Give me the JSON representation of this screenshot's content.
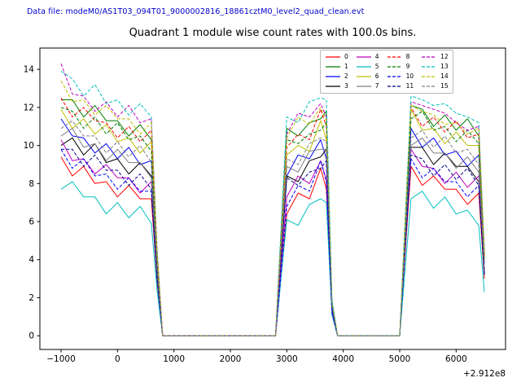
{
  "header": {
    "data_file_label": "Data file: modeM0/AS1T03_094T01_9000002816_18861cztM0_level2_quad_clean.evt",
    "color": "#0000cd"
  },
  "chart_data": {
    "type": "line",
    "title": "Quadrant 1 module wise count rates with 100.0s bins.",
    "xlabel": "",
    "ylabel": "",
    "x_offset_label": "+2.912e8",
    "grid": false,
    "legend_position": "upper right",
    "axis_color": "#000000",
    "xlim": [
      -1375,
      6875
    ],
    "ylim": [
      -0.72,
      15.12
    ],
    "x_ticks": [
      -1000,
      0,
      1000,
      2000,
      3000,
      4000,
      5000,
      6000
    ],
    "x_tick_labels": [
      "−1000",
      "0",
      "1000",
      "2000",
      "3000",
      "4000",
      "5000",
      "6000"
    ],
    "y_ticks": [
      0,
      2,
      4,
      6,
      8,
      10,
      12,
      14
    ],
    "y_tick_labels": [
      "0",
      "2",
      "4",
      "6",
      "8",
      "10",
      "12",
      "14"
    ],
    "x": [
      -1000,
      -800,
      -600,
      -400,
      -200,
      0,
      200,
      400,
      600,
      700,
      800,
      1000,
      1500,
      2000,
      2500,
      2800,
      2900,
      3000,
      3200,
      3400,
      3600,
      3700,
      3800,
      3900,
      4500,
      5000,
      5100,
      5200,
      5400,
      5600,
      5800,
      6000,
      6200,
      6400,
      6500
    ],
    "series": [
      {
        "name": "0",
        "color": "#ff0000",
        "dash": "solid",
        "values": [
          9.4,
          8.4,
          8.9,
          8.0,
          8.1,
          7.3,
          7.9,
          7.2,
          7.2,
          2.9,
          0,
          0,
          0,
          0,
          0,
          0,
          3.2,
          6.4,
          7.5,
          7.2,
          8.8,
          7.7,
          1.2,
          0,
          0,
          0,
          4.5,
          8.9,
          7.9,
          8.4,
          7.7,
          7.7,
          6.9,
          7.5,
          3.0
        ]
      },
      {
        "name": "1",
        "color": "#007f00",
        "dash": "solid",
        "values": [
          12.4,
          12.4,
          11.5,
          12.1,
          11.3,
          11.3,
          10.5,
          11.1,
          10.3,
          4.1,
          0,
          0,
          0,
          0,
          0,
          0,
          5.5,
          10.9,
          10.5,
          11.2,
          11.4,
          11.8,
          1.8,
          0,
          0,
          0,
          6.1,
          12.1,
          11.9,
          11.0,
          11.6,
          10.8,
          11.4,
          10.5,
          4.2
        ]
      },
      {
        "name": "2",
        "color": "#0000ff",
        "dash": "solid",
        "values": [
          11.4,
          10.5,
          10.4,
          9.6,
          10.1,
          9.3,
          9.9,
          9.0,
          9.2,
          3.7,
          0,
          0,
          0,
          0,
          0,
          0,
          4.2,
          8.4,
          9.5,
          9.3,
          10.3,
          9.3,
          1.4,
          0,
          0,
          0,
          5.5,
          10.9,
          9.9,
          10.4,
          9.5,
          9.7,
          8.9,
          9.5,
          3.8
        ]
      },
      {
        "name": "3",
        "color": "#000000",
        "dash": "solid",
        "values": [
          10.0,
          10.4,
          9.5,
          10.1,
          9.1,
          9.3,
          8.5,
          9.1,
          8.4,
          3.4,
          0,
          0,
          0,
          0,
          0,
          0,
          4.2,
          8.4,
          8.1,
          9.2,
          9.4,
          9.8,
          1.5,
          0,
          0,
          0,
          5.0,
          9.9,
          9.9,
          9.0,
          9.6,
          8.9,
          8.9,
          8.1,
          3.2
        ]
      },
      {
        "name": "4",
        "color": "#bf00bf",
        "dash": "solid",
        "values": [
          10.3,
          9.2,
          9.3,
          8.5,
          9.0,
          8.3,
          8.3,
          7.5,
          8.1,
          3.2,
          0,
          0,
          0,
          0,
          0,
          0,
          3.7,
          7.3,
          8.4,
          8.0,
          9.2,
          8.2,
          1.2,
          0,
          0,
          0,
          4.9,
          9.8,
          8.9,
          8.8,
          8.0,
          8.6,
          7.8,
          8.4,
          3.4
        ]
      },
      {
        "name": "5",
        "color": "#00bfbf",
        "dash": "solid",
        "values": [
          7.7,
          8.1,
          7.3,
          7.3,
          6.4,
          7.0,
          6.2,
          6.8,
          5.9,
          2.4,
          0,
          0,
          0,
          0,
          0,
          0,
          3.1,
          6.1,
          5.8,
          6.9,
          7.2,
          7.0,
          1.1,
          0,
          0,
          0,
          3.6,
          7.2,
          7.6,
          6.7,
          7.3,
          6.4,
          6.6,
          5.8,
          2.3
        ]
      },
      {
        "name": "6",
        "color": "#bfbf00",
        "dash": "solid",
        "values": [
          11.9,
          10.9,
          11.4,
          10.6,
          11.1,
          10.2,
          10.4,
          9.6,
          10.2,
          4.1,
          0,
          0,
          0,
          0,
          0,
          0,
          4.8,
          9.5,
          10.0,
          9.7,
          11.3,
          10.3,
          1.5,
          0,
          0,
          0,
          6.0,
          11.9,
          10.8,
          10.9,
          10.1,
          10.7,
          10.0,
          10.0,
          4.0
        ]
      },
      {
        "name": "7",
        "color": "#7f7f7f",
        "dash": "solid",
        "values": [
          10.5,
          10.9,
          9.9,
          10.1,
          9.2,
          9.8,
          9.1,
          9.1,
          8.3,
          3.3,
          0,
          0,
          0,
          0,
          0,
          0,
          4.5,
          8.9,
          8.6,
          9.7,
          9.8,
          9.8,
          1.5,
          0,
          0,
          0,
          5.0,
          10.0,
          10.4,
          9.6,
          9.6,
          8.8,
          9.4,
          8.6,
          3.4
        ]
      },
      {
        "name": "8",
        "color": "#ff0000",
        "dash": "dashed",
        "values": [
          12.5,
          11.5,
          12.0,
          11.3,
          11.2,
          10.4,
          11.0,
          10.2,
          10.8,
          4.3,
          0,
          0,
          0,
          0,
          0,
          0,
          5.0,
          9.9,
          10.6,
          10.3,
          11.9,
          11.0,
          1.7,
          0,
          0,
          0,
          6.0,
          12.0,
          11.0,
          11.5,
          10.7,
          11.3,
          10.4,
          10.6,
          4.2
        ]
      },
      {
        "name": "9",
        "color": "#007f00",
        "dash": "dashed",
        "values": [
          12.0,
          11.8,
          10.9,
          11.5,
          10.6,
          11.2,
          10.3,
          10.5,
          9.7,
          3.9,
          0,
          0,
          0,
          0,
          0,
          0,
          5.2,
          10.3,
          10.1,
          10.6,
          10.8,
          11.2,
          1.7,
          0,
          0,
          0,
          5.7,
          11.4,
          11.8,
          10.8,
          11.0,
          10.2,
          10.8,
          10.1,
          4.0
        ]
      },
      {
        "name": "10",
        "color": "#0000ff",
        "dash": "dashed",
        "values": [
          9.8,
          8.8,
          9.3,
          8.4,
          8.5,
          7.7,
          8.3,
          7.6,
          7.6,
          3.0,
          0,
          0,
          0,
          0,
          0,
          0,
          3.4,
          6.8,
          7.9,
          7.6,
          9.2,
          8.1,
          1.2,
          0,
          0,
          0,
          4.7,
          9.3,
          8.3,
          8.8,
          8.1,
          8.1,
          7.3,
          7.9,
          3.2
        ]
      },
      {
        "name": "11",
        "color": "#00008b",
        "dash": "dashed",
        "values": [
          9.8,
          9.8,
          8.9,
          9.5,
          8.7,
          8.7,
          7.9,
          8.5,
          7.7,
          3.1,
          0,
          0,
          0,
          0,
          0,
          0,
          4.2,
          8.3,
          7.9,
          8.6,
          8.8,
          9.2,
          1.4,
          0,
          0,
          0,
          4.8,
          9.5,
          9.3,
          8.4,
          9.0,
          8.2,
          8.8,
          7.9,
          3.2
        ]
      },
      {
        "name": "12",
        "color": "#bf00bf",
        "dash": "dashed",
        "values": [
          14.3,
          12.7,
          12.6,
          11.8,
          12.3,
          11.5,
          12.1,
          11.2,
          11.4,
          4.6,
          0,
          0,
          0,
          0,
          0,
          0,
          5.3,
          10.6,
          11.7,
          11.5,
          12.2,
          11.5,
          1.8,
          0,
          0,
          0,
          6.2,
          12.3,
          12.1,
          11.9,
          11.7,
          11.2,
          10.8,
          11.0,
          4.4
        ]
      },
      {
        "name": "13",
        "color": "#00bfbf",
        "dash": "dashed",
        "values": [
          13.9,
          13.5,
          12.6,
          13.2,
          12.2,
          12.4,
          11.6,
          12.2,
          11.5,
          4.6,
          0,
          0,
          0,
          0,
          0,
          0,
          5.8,
          11.5,
          11.2,
          12.3,
          12.5,
          12.4,
          1.9,
          0,
          0,
          0,
          6.3,
          12.6,
          12.4,
          12.1,
          12.2,
          11.7,
          11.5,
          11.2,
          4.5
        ]
      },
      {
        "name": "14",
        "color": "#bfbf00",
        "dash": "dashed",
        "values": [
          13.4,
          12.3,
          12.4,
          11.6,
          12.1,
          11.4,
          11.4,
          10.6,
          11.2,
          4.5,
          0,
          0,
          0,
          0,
          0,
          0,
          5.2,
          10.4,
          11.5,
          11.1,
          12.0,
          11.3,
          1.7,
          0,
          0,
          0,
          6.1,
          12.1,
          11.8,
          11.6,
          11.1,
          11.2,
          10.6,
          10.9,
          4.4
        ]
      },
      {
        "name": "15",
        "color": "#7f7f7f",
        "dash": "dashed",
        "values": [
          10.9,
          11.3,
          10.5,
          10.5,
          9.6,
          10.2,
          9.4,
          10.0,
          9.1,
          3.6,
          0,
          0,
          0,
          0,
          0,
          0,
          4.7,
          9.3,
          9.0,
          10.1,
          10.4,
          10.2,
          1.6,
          0,
          0,
          0,
          5.2,
          10.4,
          10.8,
          9.9,
          10.5,
          9.6,
          9.8,
          9.0,
          3.6
        ]
      }
    ]
  }
}
